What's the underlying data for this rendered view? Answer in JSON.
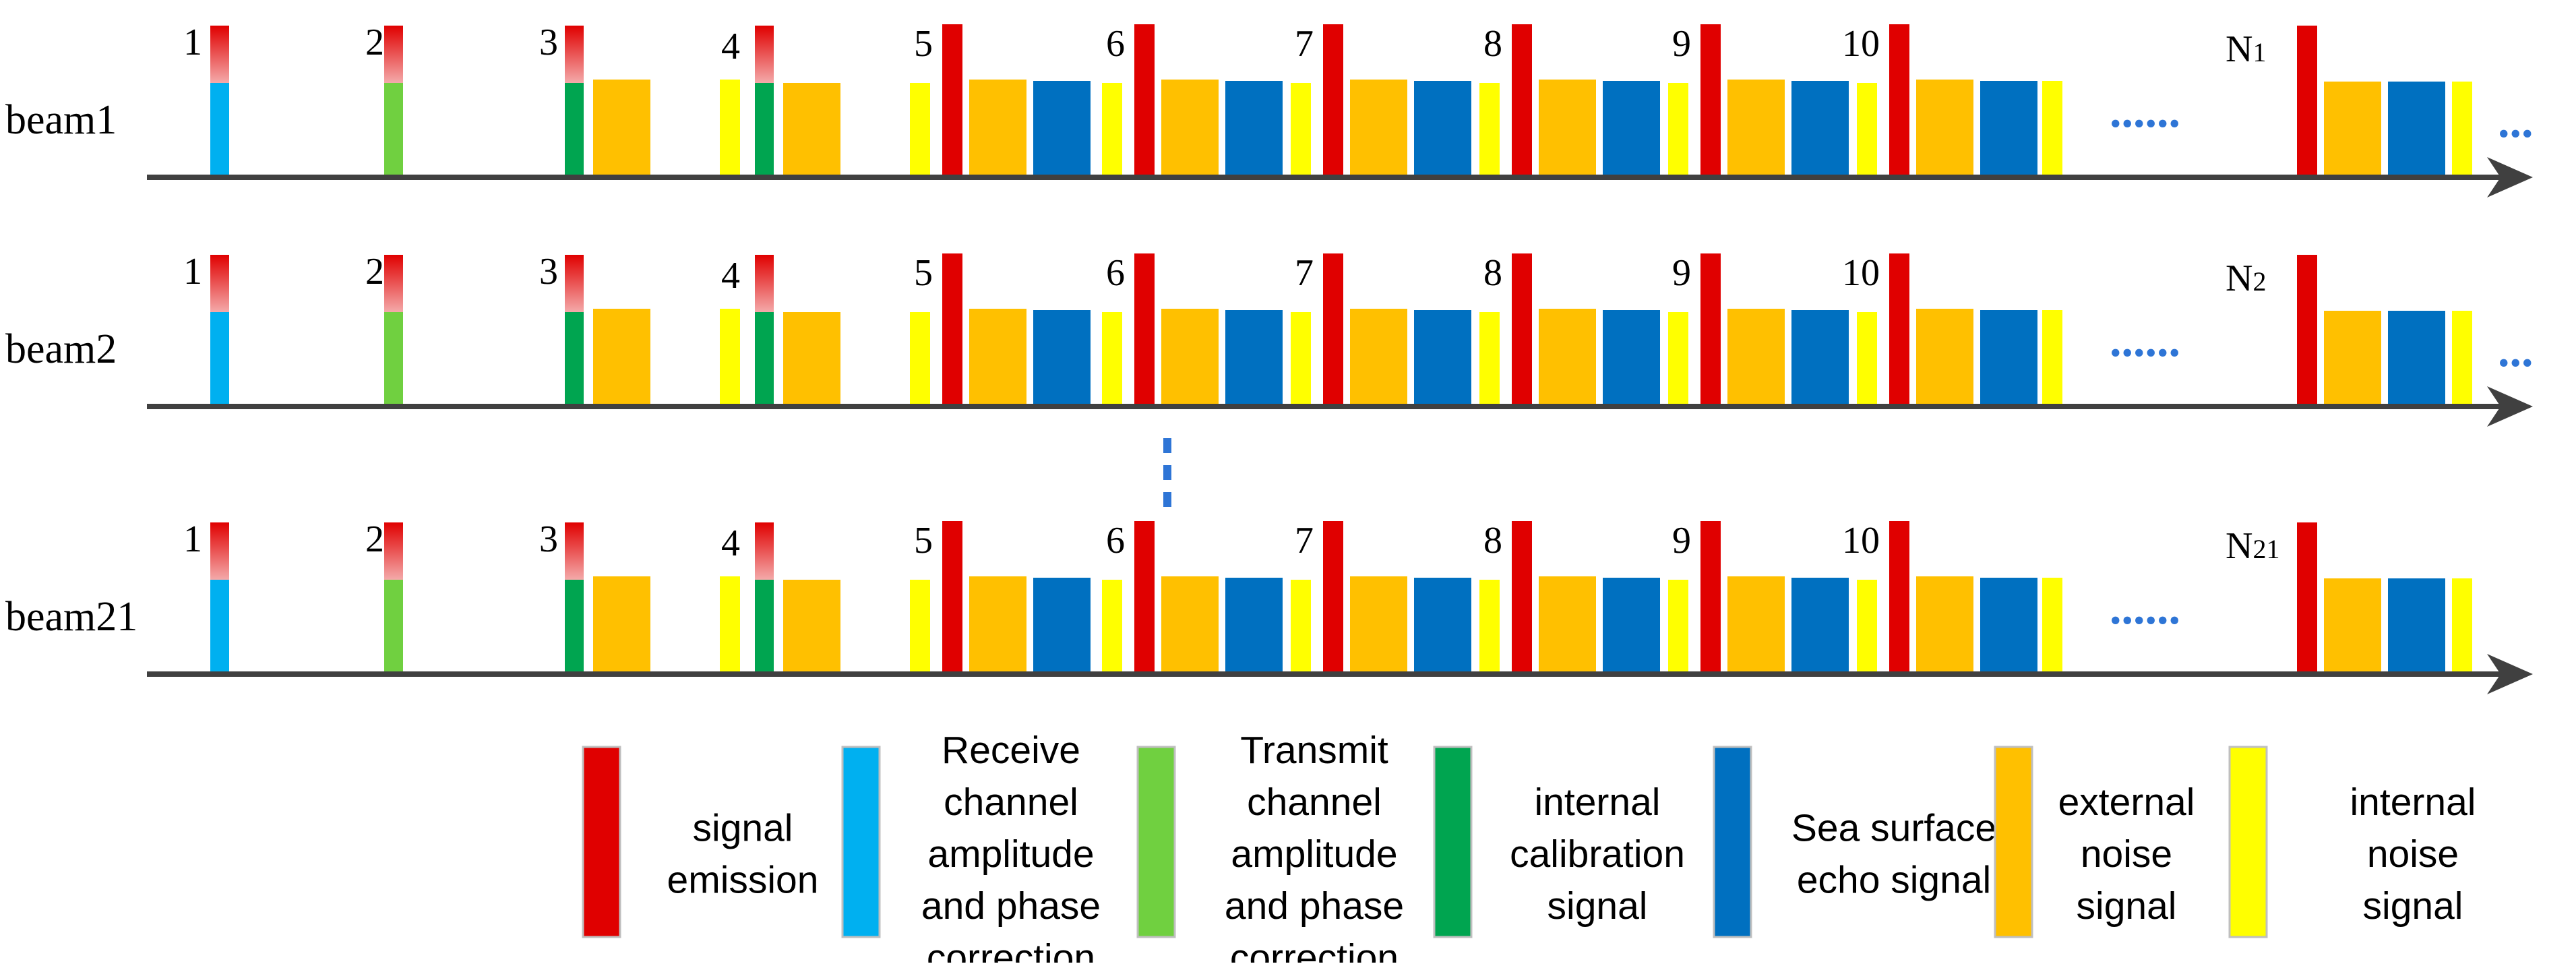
{
  "colors": {
    "signal_emission": "#e00000",
    "receive_correction": "#00b0f0",
    "transmit_correction": "#70d040",
    "internal_calibration": "#00a550",
    "sea_echo": "#0070c0",
    "external_noise": "#ffc000",
    "internal_noise": "#ffff00",
    "axis": "#404040",
    "ellipsis": "#2e75d6",
    "legend_border": "#bfbfbf"
  },
  "beams": [
    {
      "label": "beam1",
      "last_index_main": "N",
      "last_index_sub": "1"
    },
    {
      "label": "beam2",
      "last_index_main": "N",
      "last_index_sub": "2"
    },
    {
      "label": "beam21",
      "last_index_main": "N",
      "last_index_sub": "21"
    }
  ],
  "pulse_numbers": [
    "1",
    "2",
    "3",
    "4",
    "5",
    "6",
    "7",
    "8",
    "9",
    "10"
  ],
  "continuation": {
    "row_dots": "......",
    "tail_dots": "...",
    "between_beams": "⋮"
  },
  "legend": [
    {
      "key": "signal_emission",
      "lines": [
        "signal",
        "emission"
      ]
    },
    {
      "key": "receive_correction",
      "lines": [
        "Receive",
        "channel",
        "amplitude",
        "and phase",
        "correction"
      ]
    },
    {
      "key": "transmit_correction",
      "lines": [
        "Transmit",
        "channel",
        "amplitude",
        "and phase",
        "correction"
      ]
    },
    {
      "key": "internal_calibration",
      "lines": [
        "internal",
        "calibration",
        "signal"
      ]
    },
    {
      "key": "sea_echo",
      "lines": [
        "Sea surface",
        "echo signal"
      ]
    },
    {
      "key": "external_noise",
      "lines": [
        "external",
        "noise",
        "signal"
      ]
    },
    {
      "key": "internal_noise",
      "lines": [
        "internal",
        "noise",
        "signal"
      ]
    }
  ]
}
